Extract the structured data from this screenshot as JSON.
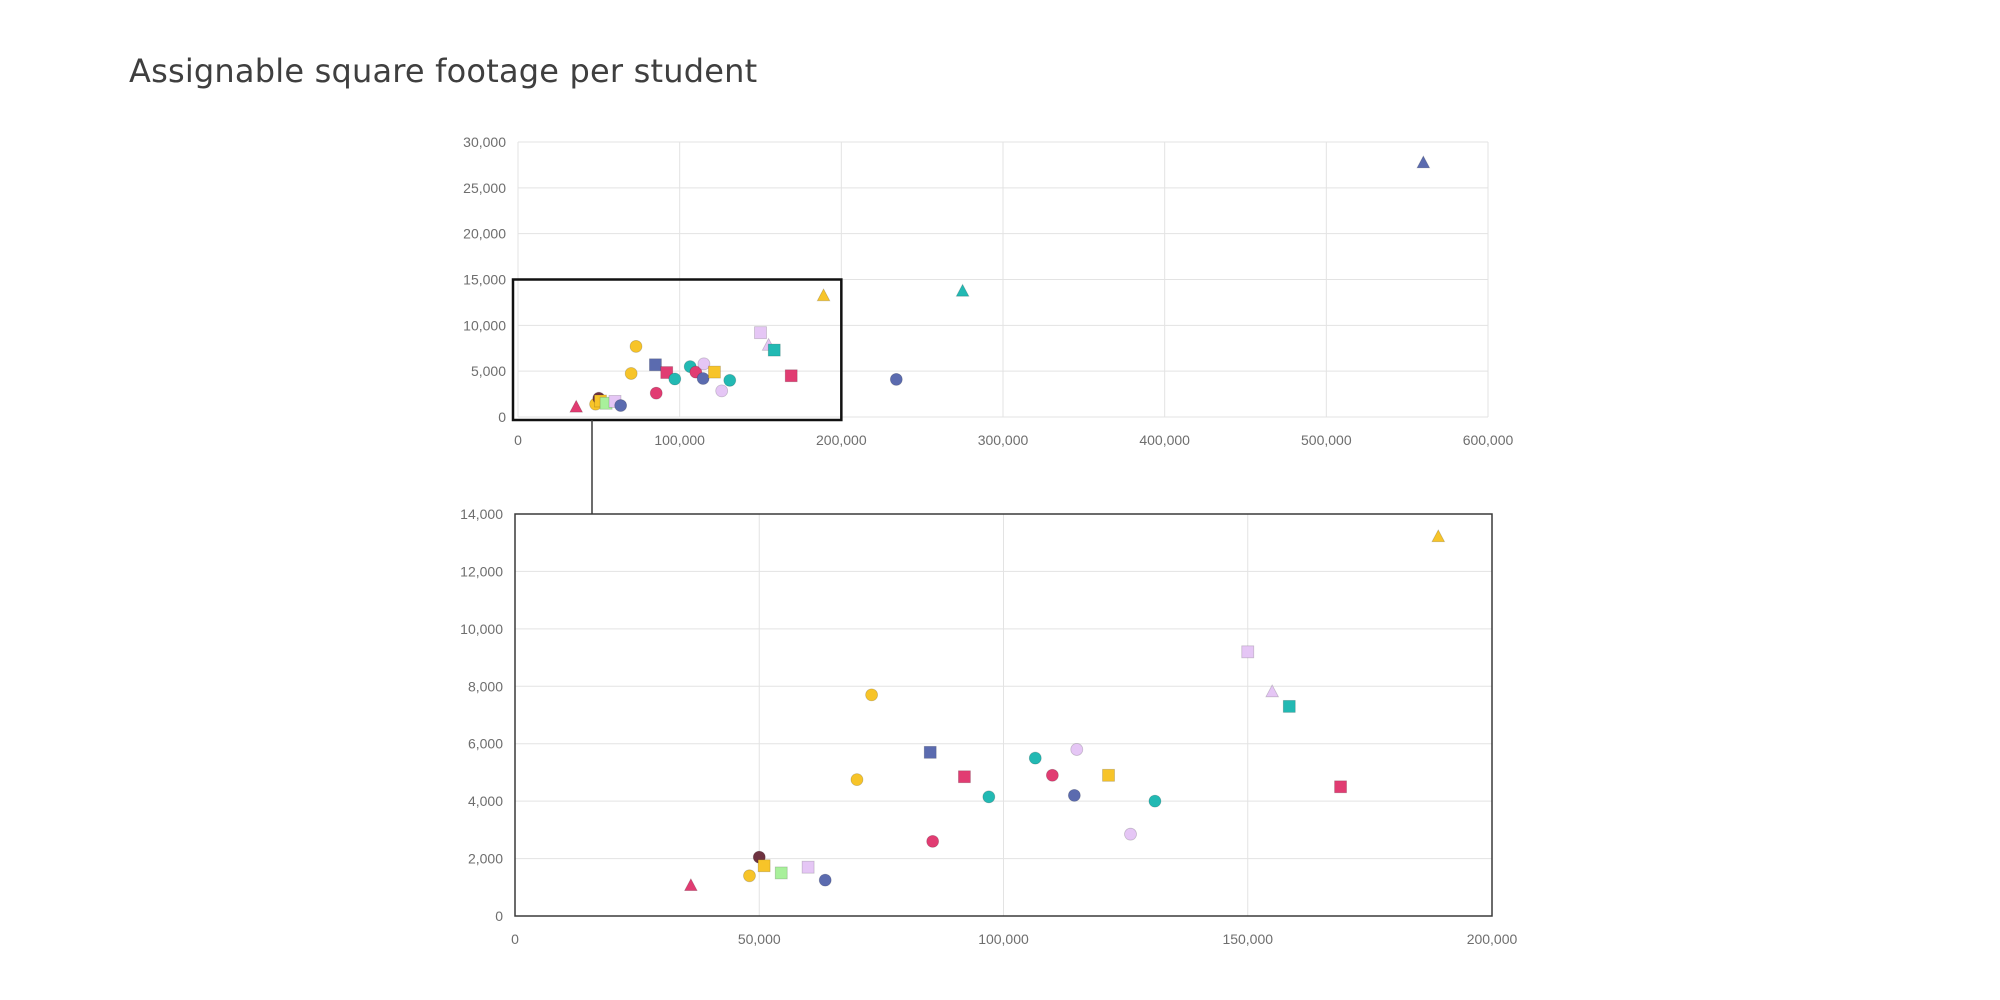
{
  "page": {
    "title": "Assignable square footage per student"
  },
  "palette": {
    "yellow": "#F7C429",
    "blue": "#5B6BAF",
    "teal": "#22B9B3",
    "crimson": "#E13C72",
    "lavender": "#E5C6F5",
    "green": "#A8F09B",
    "maroon": "#6E3240"
  },
  "chart_data": [
    {
      "type": "scatter",
      "title": "",
      "xlabel": "",
      "ylabel": "",
      "xlim": [
        0,
        600000
      ],
      "ylim": [
        0,
        30000
      ],
      "x_ticks": [
        0,
        100000,
        200000,
        300000,
        400000,
        500000,
        600000
      ],
      "x_tick_labels": [
        "0",
        "100,000",
        "200,000",
        "300,000",
        "400,000",
        "500,000",
        "600,000"
      ],
      "y_ticks": [
        0,
        5000,
        10000,
        15000,
        20000,
        25000,
        30000
      ],
      "y_tick_labels": [
        "0",
        "5,000",
        "10,000",
        "15,000",
        "20,000",
        "25,000",
        "30,000"
      ],
      "grid": true,
      "zoom_region": {
        "x": [
          0,
          200000
        ],
        "y": [
          0,
          15000
        ]
      },
      "points": [
        {
          "x": 36000,
          "y": 1050,
          "color": "crimson",
          "shape": "triangle"
        },
        {
          "x": 48000,
          "y": 1400,
          "color": "yellow",
          "shape": "circle"
        },
        {
          "x": 50000,
          "y": 2050,
          "color": "maroon",
          "shape": "circle"
        },
        {
          "x": 51000,
          "y": 1750,
          "color": "yellow",
          "shape": "square"
        },
        {
          "x": 54500,
          "y": 1500,
          "color": "green",
          "shape": "square"
        },
        {
          "x": 60000,
          "y": 1700,
          "color": "lavender",
          "shape": "square"
        },
        {
          "x": 63500,
          "y": 1250,
          "color": "blue",
          "shape": "circle"
        },
        {
          "x": 70000,
          "y": 4750,
          "color": "yellow",
          "shape": "circle"
        },
        {
          "x": 73000,
          "y": 7700,
          "color": "yellow",
          "shape": "circle"
        },
        {
          "x": 85000,
          "y": 5700,
          "color": "blue",
          "shape": "square"
        },
        {
          "x": 85500,
          "y": 2600,
          "color": "crimson",
          "shape": "circle"
        },
        {
          "x": 92000,
          "y": 4850,
          "color": "crimson",
          "shape": "square"
        },
        {
          "x": 97000,
          "y": 4150,
          "color": "teal",
          "shape": "circle"
        },
        {
          "x": 106500,
          "y": 5500,
          "color": "teal",
          "shape": "circle"
        },
        {
          "x": 110000,
          "y": 4900,
          "color": "crimson",
          "shape": "circle"
        },
        {
          "x": 114500,
          "y": 4200,
          "color": "blue",
          "shape": "circle"
        },
        {
          "x": 115000,
          "y": 5800,
          "color": "lavender",
          "shape": "circle"
        },
        {
          "x": 121500,
          "y": 4900,
          "color": "yellow",
          "shape": "square"
        },
        {
          "x": 126000,
          "y": 2850,
          "color": "lavender",
          "shape": "circle"
        },
        {
          "x": 131000,
          "y": 4000,
          "color": "teal",
          "shape": "circle"
        },
        {
          "x": 150000,
          "y": 9200,
          "color": "lavender",
          "shape": "square"
        },
        {
          "x": 155000,
          "y": 7800,
          "color": "lavender",
          "shape": "triangle"
        },
        {
          "x": 158500,
          "y": 7300,
          "color": "teal",
          "shape": "square"
        },
        {
          "x": 169000,
          "y": 4500,
          "color": "crimson",
          "shape": "square"
        },
        {
          "x": 189000,
          "y": 13200,
          "color": "yellow",
          "shape": "triangle"
        },
        {
          "x": 234000,
          "y": 4100,
          "color": "blue",
          "shape": "circle"
        },
        {
          "x": 275000,
          "y": 13700,
          "color": "teal",
          "shape": "triangle"
        },
        {
          "x": 560000,
          "y": 27700,
          "color": "blue",
          "shape": "triangle"
        }
      ]
    },
    {
      "type": "scatter",
      "title": "",
      "xlabel": "",
      "ylabel": "",
      "xlim": [
        0,
        200000
      ],
      "ylim": [
        0,
        14000
      ],
      "x_ticks": [
        0,
        50000,
        100000,
        150000,
        200000
      ],
      "x_tick_labels": [
        "0",
        "50,000",
        "100,000",
        "150,000",
        "200,000"
      ],
      "y_ticks": [
        0,
        2000,
        4000,
        6000,
        8000,
        10000,
        12000,
        14000
      ],
      "y_tick_labels": [
        "0",
        "2,000",
        "4,000",
        "6,000",
        "8,000",
        "10,000",
        "12,000",
        "14,000"
      ],
      "grid": true,
      "points": [
        {
          "x": 36000,
          "y": 1050,
          "color": "crimson",
          "shape": "triangle"
        },
        {
          "x": 48000,
          "y": 1400,
          "color": "yellow",
          "shape": "circle"
        },
        {
          "x": 50000,
          "y": 2050,
          "color": "maroon",
          "shape": "circle"
        },
        {
          "x": 51000,
          "y": 1750,
          "color": "yellow",
          "shape": "square"
        },
        {
          "x": 54500,
          "y": 1500,
          "color": "green",
          "shape": "square"
        },
        {
          "x": 60000,
          "y": 1700,
          "color": "lavender",
          "shape": "square"
        },
        {
          "x": 63500,
          "y": 1250,
          "color": "blue",
          "shape": "circle"
        },
        {
          "x": 70000,
          "y": 4750,
          "color": "yellow",
          "shape": "circle"
        },
        {
          "x": 73000,
          "y": 7700,
          "color": "yellow",
          "shape": "circle"
        },
        {
          "x": 85000,
          "y": 5700,
          "color": "blue",
          "shape": "square"
        },
        {
          "x": 85500,
          "y": 2600,
          "color": "crimson",
          "shape": "circle"
        },
        {
          "x": 92000,
          "y": 4850,
          "color": "crimson",
          "shape": "square"
        },
        {
          "x": 97000,
          "y": 4150,
          "color": "teal",
          "shape": "circle"
        },
        {
          "x": 106500,
          "y": 5500,
          "color": "teal",
          "shape": "circle"
        },
        {
          "x": 110000,
          "y": 4900,
          "color": "crimson",
          "shape": "circle"
        },
        {
          "x": 114500,
          "y": 4200,
          "color": "blue",
          "shape": "circle"
        },
        {
          "x": 115000,
          "y": 5800,
          "color": "lavender",
          "shape": "circle"
        },
        {
          "x": 121500,
          "y": 4900,
          "color": "yellow",
          "shape": "square"
        },
        {
          "x": 126000,
          "y": 2850,
          "color": "lavender",
          "shape": "circle"
        },
        {
          "x": 131000,
          "y": 4000,
          "color": "teal",
          "shape": "circle"
        },
        {
          "x": 150000,
          "y": 9200,
          "color": "lavender",
          "shape": "square"
        },
        {
          "x": 155000,
          "y": 7800,
          "color": "lavender",
          "shape": "triangle"
        },
        {
          "x": 158500,
          "y": 7300,
          "color": "teal",
          "shape": "square"
        },
        {
          "x": 169000,
          "y": 4500,
          "color": "crimson",
          "shape": "square"
        },
        {
          "x": 189000,
          "y": 13200,
          "color": "yellow",
          "shape": "triangle"
        }
      ]
    }
  ]
}
